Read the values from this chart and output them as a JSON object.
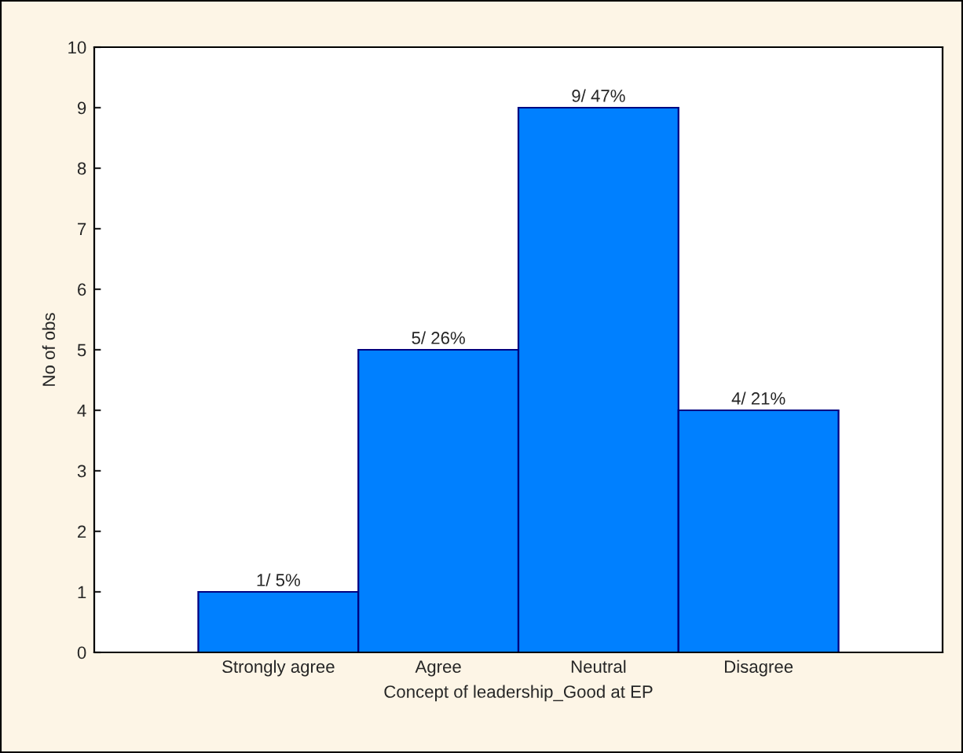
{
  "chart_data": {
    "type": "bar",
    "xlabel": "Concept of leadership_Good at EP",
    "ylabel": "No of obs",
    "categories": [
      "Strongly agree",
      "Agree",
      "Neutral",
      "Disagree"
    ],
    "values": [
      1,
      5,
      9,
      4
    ],
    "value_labels": [
      "1/ 5%",
      "5/ 26%",
      "9/ 47%",
      "4/ 21%"
    ],
    "color": "#0080ff",
    "ylim": [
      0,
      10
    ],
    "yticks": [
      0,
      1,
      2,
      3,
      4,
      5,
      6,
      7,
      8,
      9,
      10
    ],
    "grid": false,
    "legend": false
  }
}
